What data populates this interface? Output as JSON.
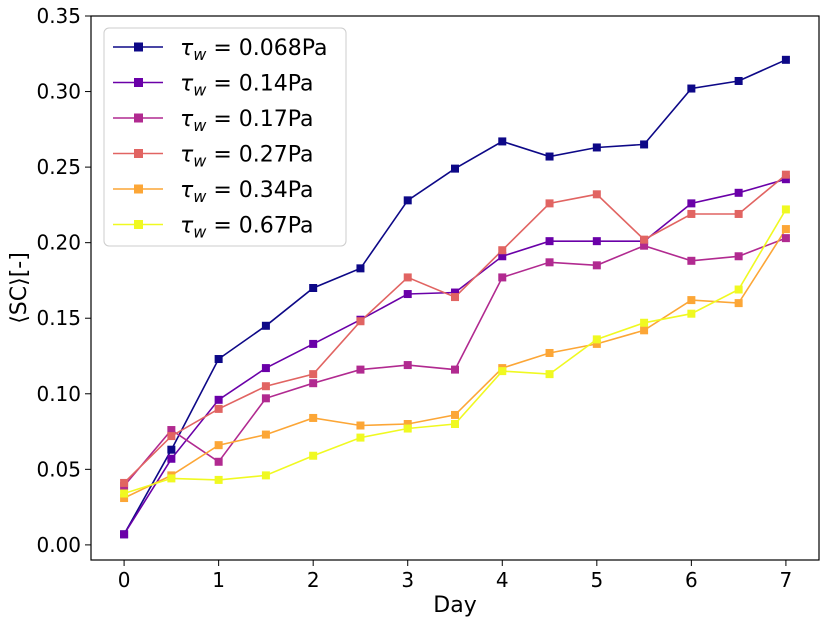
{
  "chart_data": {
    "type": "line",
    "title": "",
    "xlabel": "Day",
    "ylabel": "⟨SC⟩[-]",
    "xlim": [
      -0.35,
      7.35
    ],
    "ylim": [
      -0.01,
      0.35
    ],
    "xticks": [
      0,
      1,
      2,
      3,
      4,
      5,
      6,
      7
    ],
    "xtick_labels": [
      "0",
      "1",
      "2",
      "3",
      "4",
      "5",
      "6",
      "7"
    ],
    "yticks": [
      0.0,
      0.05,
      0.1,
      0.15,
      0.2,
      0.25,
      0.3,
      0.35
    ],
    "ytick_labels": [
      "0.00",
      "0.05",
      "0.10",
      "0.15",
      "0.20",
      "0.25",
      "0.30",
      "0.35"
    ],
    "grid": false,
    "legend_position": "top-left",
    "marker": "square",
    "x": [
      0,
      0.5,
      1,
      1.5,
      2,
      2.5,
      3,
      3.5,
      4,
      4.5,
      5,
      5.5,
      6,
      6.5,
      7
    ],
    "series": [
      {
        "name": "0.068Pa",
        "color": "#0d0887",
        "values": [
          0.007,
          0.063,
          0.123,
          0.145,
          0.17,
          0.183,
          0.228,
          0.249,
          0.267,
          0.257,
          0.263,
          0.265,
          0.302,
          0.307,
          0.321
        ]
      },
      {
        "name": "0.14Pa",
        "color": "#6a00a8",
        "values": [
          0.007,
          0.057,
          0.096,
          0.117,
          0.133,
          0.149,
          0.166,
          0.167,
          0.191,
          0.201,
          0.201,
          0.201,
          0.226,
          0.233,
          0.242
        ]
      },
      {
        "name": "0.17Pa",
        "color": "#b12a90",
        "values": [
          0.039,
          0.076,
          0.055,
          0.097,
          0.107,
          0.116,
          0.119,
          0.116,
          0.177,
          0.187,
          0.185,
          0.198,
          0.188,
          0.191,
          0.203
        ]
      },
      {
        "name": "0.27Pa",
        "color": "#e16462",
        "values": [
          0.041,
          0.072,
          0.09,
          0.105,
          0.113,
          0.148,
          0.177,
          0.164,
          0.195,
          0.226,
          0.232,
          0.202,
          0.219,
          0.219,
          0.245
        ]
      },
      {
        "name": "0.34Pa",
        "color": "#fca636",
        "values": [
          0.031,
          0.046,
          0.066,
          0.073,
          0.084,
          0.079,
          0.08,
          0.086,
          0.117,
          0.127,
          0.133,
          0.142,
          0.162,
          0.16,
          0.209
        ]
      },
      {
        "name": "0.67Pa",
        "color": "#f0f921",
        "values": [
          0.034,
          0.044,
          0.043,
          0.046,
          0.059,
          0.071,
          0.077,
          0.08,
          0.115,
          0.113,
          0.136,
          0.147,
          0.153,
          0.169,
          0.222
        ]
      }
    ]
  }
}
